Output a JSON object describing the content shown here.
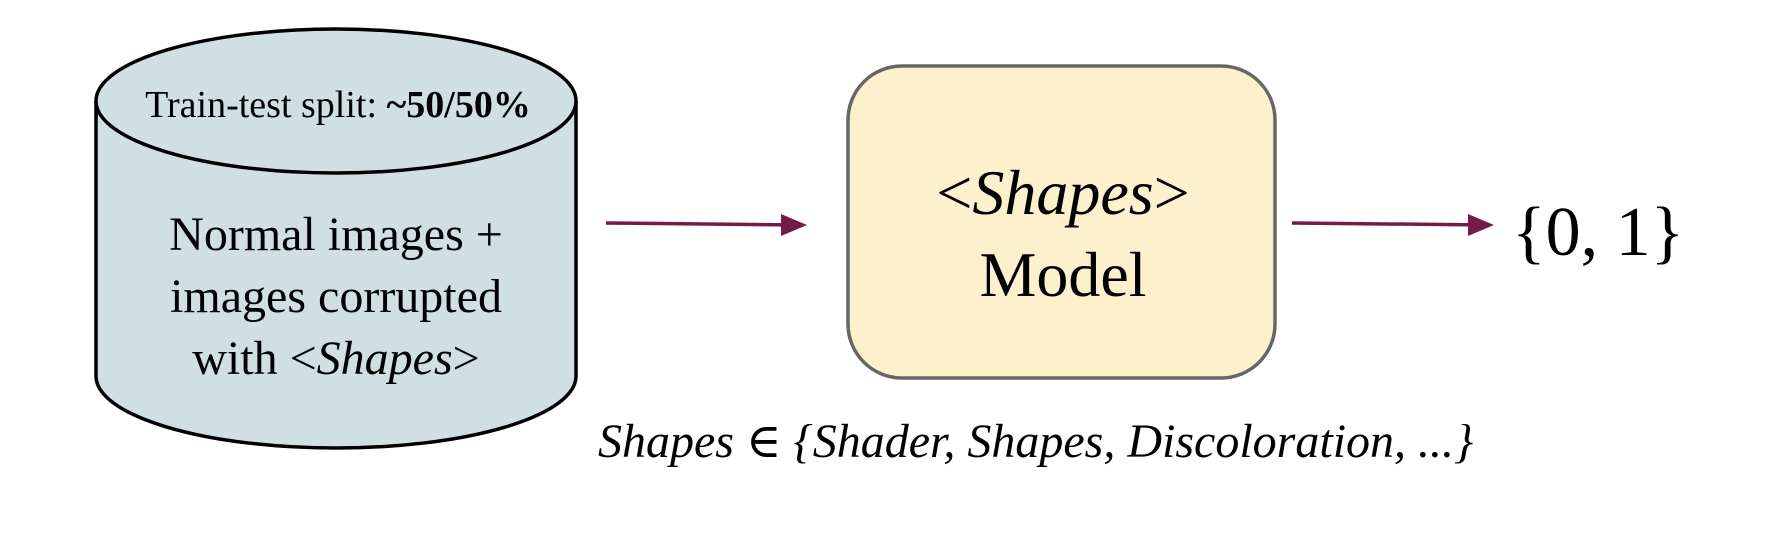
{
  "colors": {
    "cylinder_fill": "#d0e0e2",
    "model_fill": "#fdf0cd",
    "model_border": "#666666",
    "arrow": "#741b47"
  },
  "dataset": {
    "split_prefix": "Train-test split: ",
    "split_value": "~50/50%",
    "line1": "Normal images +",
    "line2": "images corrupted",
    "line3_prefix": "with <",
    "line3_italic": "Shapes",
    "line3_suffix": ">"
  },
  "model": {
    "open": "<",
    "name": "Shapes",
    "close": ">",
    "label": "Model"
  },
  "output": "{0, 1}",
  "formula": "Shapes ∈ {Shader, Shapes, Discoloration, ...}"
}
